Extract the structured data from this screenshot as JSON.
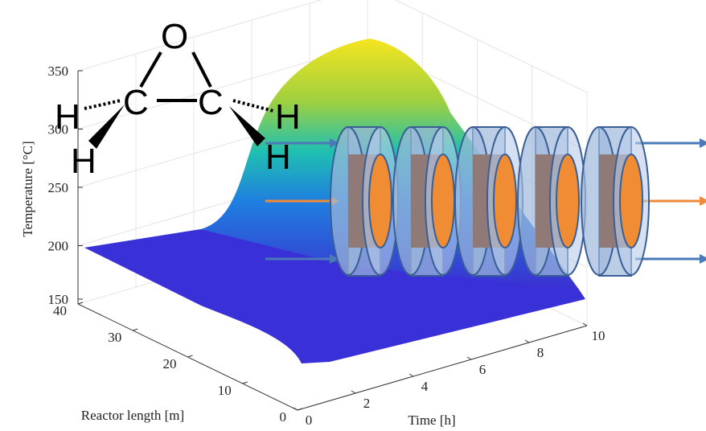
{
  "chart_data": {
    "type": "surface3d",
    "xlabel": "Time [h]",
    "ylabel": "Reactor length [m]",
    "zlabel": "Temperature [°C]",
    "xlim": [
      0,
      10
    ],
    "xticks": [
      0,
      2,
      4,
      6,
      8,
      10
    ],
    "ylim": [
      0,
      40
    ],
    "yticks": [
      0,
      10,
      20,
      30,
      40
    ],
    "zlim": [
      150,
      350
    ],
    "zticks": [
      150,
      200,
      250,
      300,
      350
    ],
    "grid": true
  },
  "molecule": {
    "atoms": [
      "O",
      "C",
      "C",
      "H",
      "H",
      "H",
      "H"
    ]
  }
}
